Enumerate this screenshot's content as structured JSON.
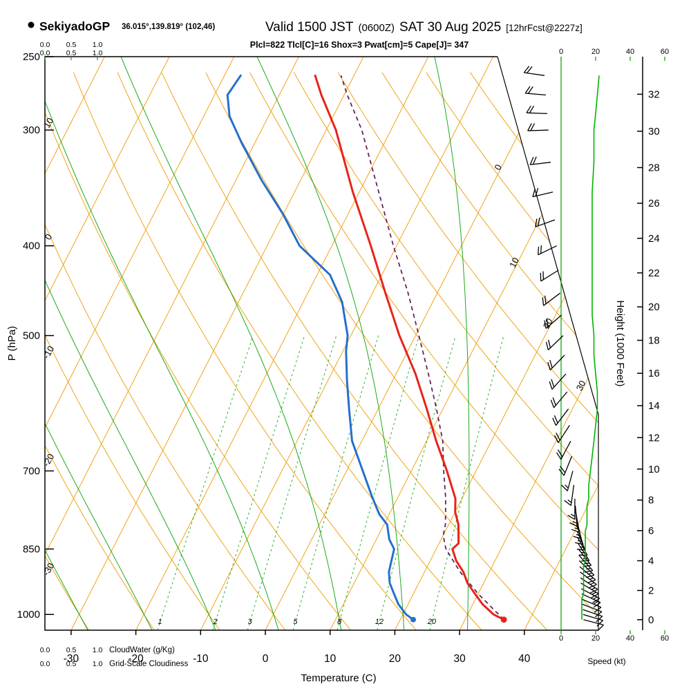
{
  "header": {
    "station": "SekiyadoGP",
    "coords": "36.015°,139.819° (102,46)",
    "valid_main": "Valid 1500 JST",
    "valid_z": "(0600Z)",
    "valid_date": "SAT 30 Aug 2025",
    "fcst": "[12hrFcst@2227z]",
    "params": "Plcl=822 Tlcl[C]=16 Shox=3 Pwat[cm]=5 Cape[J]= 347"
  },
  "axes": {
    "pressure_label": "P (hPa)",
    "pressure_ticks": [
      250,
      300,
      400,
      500,
      700,
      850,
      1000
    ],
    "temp_label": "Temperature (C)",
    "temp_ticks": [
      -30,
      -20,
      -10,
      0,
      10,
      20,
      30,
      40
    ],
    "height_label": "Height (1000 Feet)",
    "height_ticks": [
      0,
      2,
      4,
      6,
      8,
      10,
      12,
      14,
      16,
      18,
      20,
      22,
      24,
      26,
      28,
      30,
      32
    ],
    "speed_label": "Speed (kt)",
    "speed_ticks": [
      0,
      20,
      40,
      60
    ],
    "cloud_scale": [
      "0.0",
      "0.5",
      "1.0"
    ],
    "cloudwater_label": "CloudWater (g/Kg)",
    "cloudiness_label": "Grid-Scale Cloudiness"
  },
  "labels": {
    "isotherms": [
      0,
      10,
      20,
      30
    ],
    "dry_adiabats": [
      10,
      0,
      -10,
      -20,
      -30
    ]
  },
  "colors": {
    "isotherm": "#efa418",
    "green": "#00a000",
    "speed_line": "#00b400",
    "temperature": "#e8231a",
    "dewpoint": "#2470cc",
    "parcel": "#662255",
    "params": "#aa0066",
    "barb": "#000000"
  },
  "chart_data": {
    "type": "skewt-logp",
    "title": "SekiyadoGP sounding Valid 1500 JST (0600Z) SAT 30 Aug 2025",
    "pressure_range": [
      250,
      1040
    ],
    "temp_axis_at_surface": {
      "min": -30,
      "max": 40,
      "step": 10
    },
    "isotherms_c": {
      "min": -80,
      "max": 40,
      "step": 10
    },
    "dry_adiabats_c": {
      "min": -40,
      "max": 140,
      "step": 10
    },
    "moist_adiabats": [
      -40,
      -30,
      -20,
      -10,
      0,
      10,
      20,
      30
    ],
    "mixing_ratios": [
      1,
      2,
      3,
      5,
      8,
      12,
      20
    ],
    "temperature_profile": {
      "pressure": [
        1013,
        1000,
        975,
        950,
        925,
        900,
        875,
        850,
        838,
        800,
        775,
        750,
        700,
        650,
        600,
        550,
        500,
        450,
        400,
        350,
        300,
        275,
        262
      ],
      "temp": [
        36,
        34,
        31.5,
        29.5,
        27.5,
        26,
        24,
        22.5,
        23,
        21.5,
        20,
        19,
        15.5,
        11.5,
        7.5,
        3,
        -2.5,
        -8,
        -14,
        -21,
        -28.5,
        -33.5,
        -36
      ]
    },
    "dewpoint_profile": {
      "pressure": [
        1013,
        1000,
        975,
        950,
        925,
        900,
        875,
        850,
        830,
        800,
        780,
        760,
        740,
        700,
        650,
        600,
        560,
        520,
        500,
        460,
        430,
        400,
        370,
        340,
        310,
        290,
        275,
        262
      ],
      "temp": [
        22,
        20.5,
        18.5,
        17,
        15.5,
        14.5,
        14,
        13.5,
        12,
        10.5,
        8.5,
        7,
        5.5,
        2.5,
        -1.5,
        -4.5,
        -7,
        -9.5,
        -10.5,
        -14,
        -18,
        -25,
        -30,
        -36,
        -42,
        -46,
        -48,
        -47.5
      ]
    },
    "parcel_profile": {
      "pressure": [
        1013,
        950,
        900,
        850,
        822,
        800,
        750,
        700,
        650,
        600,
        550,
        500,
        450,
        400,
        350,
        300,
        275,
        262
      ],
      "temp": [
        36,
        30,
        25.5,
        21.5,
        20,
        19.5,
        17.5,
        15,
        12.5,
        9,
        5,
        0.5,
        -4.5,
        -10.5,
        -17,
        -24.5,
        -29.5,
        -32
      ]
    },
    "surface_temp_point": {
      "pressure": 1013,
      "temp": 36
    },
    "surface_dewpoint_point": {
      "pressure": 1013,
      "temp": 22
    },
    "wind_profile": {
      "pressure": [
        1013,
        1000,
        988,
        975,
        963,
        950,
        938,
        925,
        913,
        900,
        888,
        875,
        863,
        850,
        838,
        825,
        813,
        800,
        788,
        775,
        763,
        750,
        725,
        700,
        675,
        650,
        625,
        600,
        575,
        550,
        525,
        500,
        475,
        450,
        425,
        400,
        375,
        350,
        325,
        300,
        288,
        275,
        262
      ],
      "direction_deg": [
        105,
        107,
        109,
        111,
        113,
        115,
        118,
        121,
        124,
        127,
        130,
        134,
        138,
        142,
        147,
        152,
        157,
        162,
        166,
        170,
        175,
        180,
        188,
        195,
        202,
        208,
        213,
        217,
        220,
        222,
        224,
        226,
        229,
        233,
        238,
        244,
        250,
        257,
        263,
        268,
        272,
        275,
        278
      ],
      "speed_kt": [
        12,
        12,
        12,
        12,
        12,
        13,
        13,
        13,
        13,
        13,
        13,
        14,
        14,
        14,
        14,
        14,
        14,
        15,
        15,
        15,
        15,
        16,
        16,
        17,
        18,
        19,
        20,
        21,
        21,
        20,
        19,
        19,
        18,
        18,
        18,
        18,
        18,
        18,
        19,
        19,
        20,
        21,
        22
      ]
    },
    "lcl_pressure": 822,
    "lcl_temp_c": 16,
    "showalter": 3,
    "pwat_cm": 5,
    "cape_j": 347
  }
}
